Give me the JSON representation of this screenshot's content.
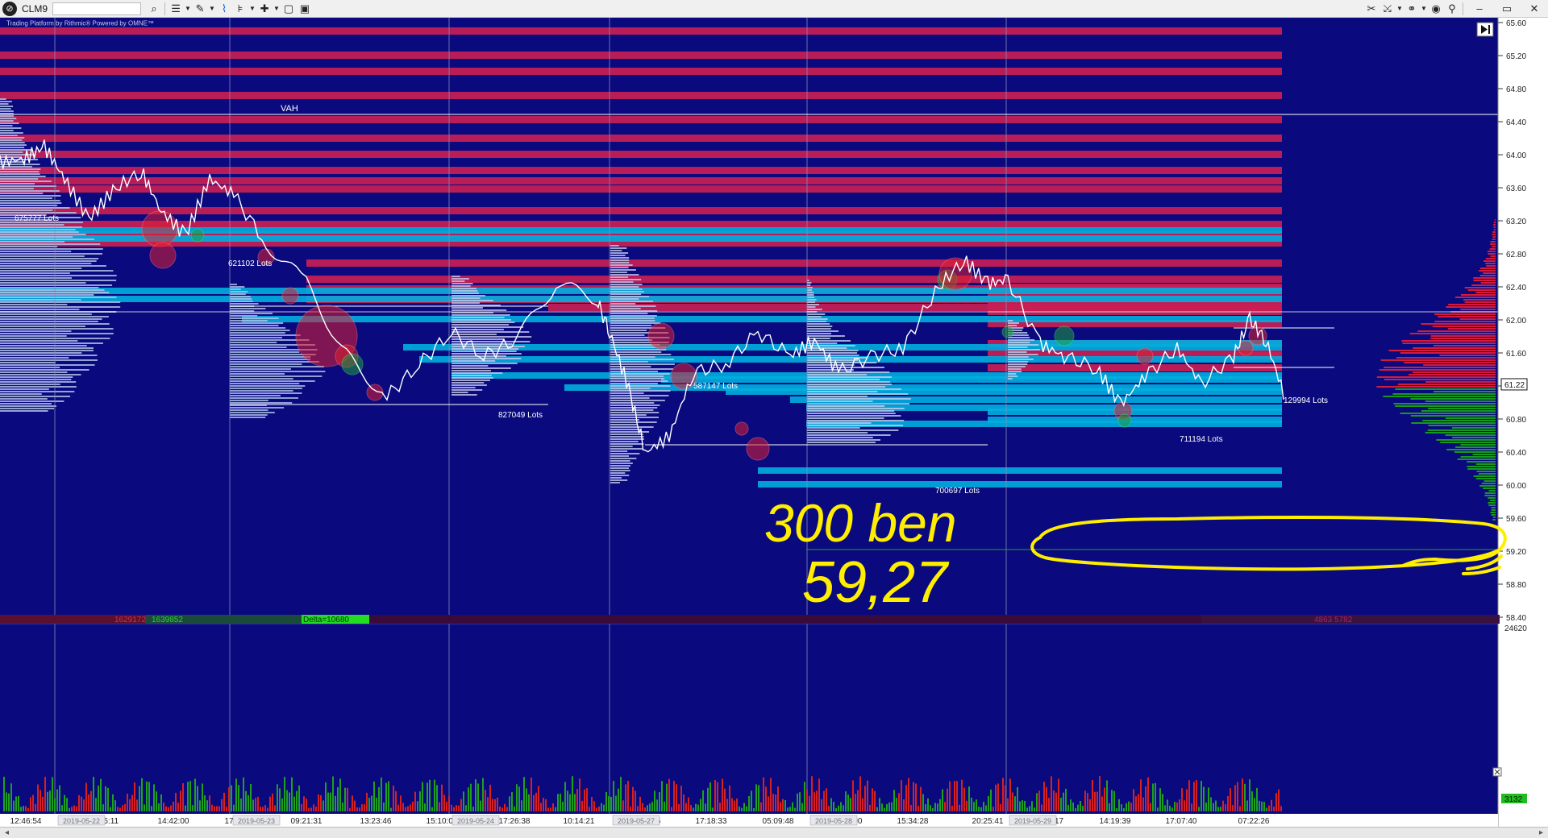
{
  "toolbar": {
    "symbol": "CLM9",
    "icons": [
      "app-logo-icon",
      "search-icon",
      "list-icon",
      "pencil-icon",
      "line-chart-icon",
      "bar-settings-icon",
      "crosshair-icon",
      "window-icon",
      "layout-icon"
    ],
    "right_icons": [
      "tools-icon",
      "crossing-arrows-icon",
      "link-icon",
      "camera-icon",
      "pin-icon"
    ],
    "window_controls": {
      "minimize": "–",
      "maximize": "▭",
      "close": "✕"
    }
  },
  "chart": {
    "branding": "Trading Platform by Rithmic® Powered by OMNE™",
    "vah_label": "VAH",
    "current_price": "61.22",
    "price_axis": [
      "65.60",
      "65.20",
      "64.80",
      "64.40",
      "64.00",
      "63.60",
      "63.20",
      "62.80",
      "62.40",
      "62.00",
      "61.60",
      "61.20",
      "60.80",
      "60.40",
      "60.00",
      "59.60",
      "59.20",
      "58.80",
      "58.40"
    ],
    "lots_labels": [
      {
        "text": "675777 Lots"
      },
      {
        "text": "621102 Lots"
      },
      {
        "text": "827049 Lots"
      },
      {
        "text": "587147 Lots"
      },
      {
        "text": "700697 Lots"
      },
      {
        "text": "711194 Lots"
      },
      {
        "text": "129994 Lots"
      }
    ],
    "time_labels": [
      "12:46:54",
      "16:45:11",
      "14:42:00",
      "17:25:08",
      "09:21:31",
      "13:23:46",
      "15:10:01",
      "17:26:38",
      "10:14:21",
      "14:07:26",
      "17:18:33",
      "05:09:48",
      "13:05:00",
      "15:34:28",
      "20:25:41",
      "11:50:17",
      "14:19:39",
      "17:07:40",
      "07:22:26"
    ],
    "session_dates": [
      "2019-05-22",
      "2019-05-23",
      "2019-05-24",
      "2019-05-27",
      "2019-05-28",
      "2019-05-29"
    ],
    "delta_left": "1629172",
    "delta_right": "1639852",
    "delta_label": "Delta=10680",
    "right_delta": "4863 5782",
    "volume_top": "24620",
    "volume_current": "3132",
    "handwriting_line1": "300 ben",
    "handwriting_line2": "59,27"
  },
  "status": {
    "left": "◂",
    "right": "▸"
  },
  "colors": {
    "background": "#0a0a7e",
    "bearish": "#d6245a",
    "bullish": "#1fa01f",
    "profile": "#00b4e6",
    "annotation": "#ffee00"
  }
}
